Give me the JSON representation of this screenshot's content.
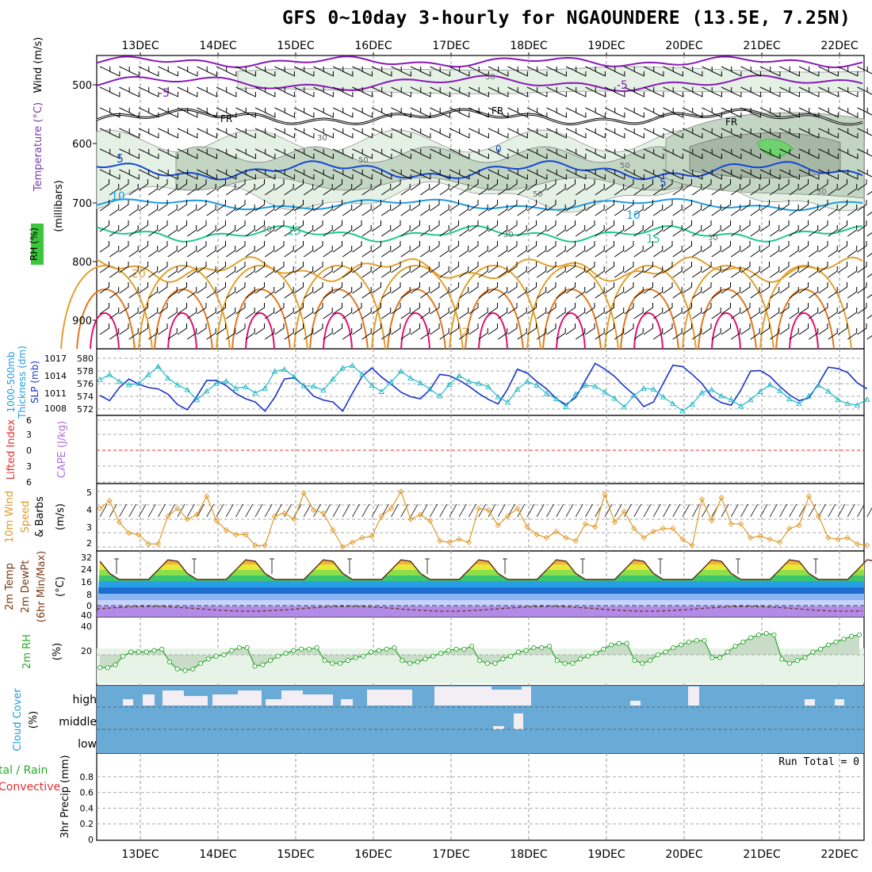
{
  "title": "GFS 0~10day 3-hourly for NGAOUNDERE (13.5E, 7.25N)",
  "date_labels": [
    "13DEC",
    "14DEC",
    "15DEC",
    "16DEC",
    "17DEC",
    "18DEC",
    "19DEC",
    "20DEC",
    "21DEC",
    "22DEC"
  ],
  "colors": {
    "rh_fill_light": "#e4f1e4",
    "rh_fill_mid": "#c3d6c3",
    "rh_fill_dark": "#a6b7a6",
    "rh_fill_sat": "#6fd26f",
    "t_minus5": "#8a18b8",
    "t_freeze": "#000000",
    "t_5": "#1446d2",
    "t_10": "#1e9be0",
    "t_15": "#1ec88c",
    "t_20": "#e0a030",
    "t_25": "#e07820",
    "t_30": "#e01070",
    "thickness": "#1a33cc",
    "slp": "#20b8c8",
    "lifted_index": "#e03030",
    "cape": "#b070e0",
    "wind10m": "#e09a2a",
    "rh2m": "#2aa82a",
    "cloud": "#6aaad6",
    "precip_green": "#2aa82a",
    "precip_red": "#e03030"
  },
  "panels": {
    "upper_air": {
      "ylabel_wind": "Wind (m/s)",
      "ylabel_temp": "Temperature (°C)",
      "ylabel_rh": "RH (%)",
      "ylabel_unit": "(millibars)",
      "y_ticks": [
        "500",
        "600",
        "700",
        "800",
        "900"
      ],
      "contour_labels": {
        "m5": "-5",
        "fr": "FR",
        "p5": "5",
        "p10": "10",
        "p15": "15",
        "p20": "20",
        "p2": "2",
        "rh30": "30",
        "rh50": "50",
        "zero": "0"
      }
    },
    "thickness_slp": {
      "ylabel_left": "1000-500mb",
      "ylabel_left2": "Thickness (dm)",
      "ylabel_right": "SLP (mb)",
      "left_ticks": [
        "580",
        "578",
        "576",
        "574",
        "572"
      ],
      "right_ticks": [
        "1017",
        "1014",
        "1011",
        "1008"
      ]
    },
    "stability": {
      "ylabel_a": "Lifted Index",
      "ylabel_b": "CAPE (J/kg)",
      "ticks": [
        "6",
        "3",
        "0",
        "3",
        "6"
      ]
    },
    "wind10m": {
      "ylabel_a": "10m Wind",
      "ylabel_b": "Speed",
      "ylabel_c": "& Barbs",
      "unit": "(m/s)",
      "ticks": [
        "5",
        "4",
        "3",
        "2"
      ]
    },
    "temp2m": {
      "ylabel_a": "2m Temp",
      "ylabel_b": "2m DewPt",
      "ylabel_c": "(6hr Min/Max)",
      "unit": "(°C)",
      "ticks": [
        "32",
        "24",
        "16",
        "8",
        "0",
        "40"
      ]
    },
    "rh2m": {
      "ylabel": "2m RH",
      "unit": "(%)",
      "ticks": [
        "40",
        "20"
      ]
    },
    "cloud": {
      "ylabel": "Cloud Cover",
      "unit": "(%)",
      "levels": [
        "high",
        "middle",
        "low"
      ]
    },
    "precip": {
      "ylabel_a": "tal / Rain",
      "ylabel_b": "Convective",
      "ylabel_c": "3hr Precip (mm)",
      "run_total": "Run Total = 0",
      "ticks": [
        "0.8",
        "0.6",
        "0.4",
        "0.2",
        "0"
      ]
    }
  },
  "chart_data": [
    {
      "type": "line",
      "name": "1000-500mb thickness & SLP",
      "x_step_hours": 3,
      "series": [
        {
          "name": "Thickness (dm)",
          "values": [
            574.6,
            573.8,
            575.8,
            577.1,
            576.3,
            575.8,
            575.6,
            574.8,
            573.2,
            572.4,
            574.5,
            576.9,
            576.9,
            576.1,
            574.9,
            574.1,
            573.6,
            572.2,
            574.3,
            577.1,
            577.3,
            576.1,
            574.5,
            573.9,
            573.6,
            572.2,
            574.9,
            577.5,
            578.8,
            577.4,
            576.3,
            575.1,
            574.4,
            574.1,
            575.5,
            577.8,
            577.6,
            576.9,
            576.0,
            574.9,
            574.0,
            573.3,
            575.6,
            578.6,
            578.0,
            576.7,
            575.6,
            574.1,
            573.2,
            574.3,
            576.9,
            579.5,
            578.6,
            577.5,
            576.0,
            574.7,
            572.9,
            573.6,
            576.4,
            579.2,
            579.0,
            577.8,
            576.4,
            574.4,
            573.5,
            573.1,
            575.4,
            578.3,
            578.4,
            577.5,
            576.0,
            574.7,
            573.8,
            574.2,
            576.4,
            578.9,
            578.7,
            578.1,
            576.5,
            575.6
          ]
        },
        {
          "name": "SLP (mb)",
          "values": [
            1013.6,
            1014.6,
            1013.2,
            1012.5,
            1012.8,
            1014.6,
            1016.3,
            1013.9,
            1012.5,
            1011.5,
            1009.4,
            1011.2,
            1012.8,
            1013.3,
            1011.8,
            1012.1,
            1010.8,
            1011.8,
            1015.3,
            1015.7,
            1014.2,
            1012.3,
            1012.2,
            1011.4,
            1013.7,
            1016.0,
            1016.5,
            1014.7,
            1012.4,
            1011.1,
            1013.1,
            1015.3,
            1013.9,
            1012.9,
            1011.6,
            1010.2,
            1012.6,
            1014.4,
            1013.2,
            1012.8,
            1012.1,
            1010.0,
            1008.9,
            1011.6,
            1013.2,
            1012.4,
            1010.7,
            1009.6,
            1008.0,
            1010.6,
            1012.4,
            1012.2,
            1011.0,
            1009.7,
            1007.9,
            1010.3,
            1011.8,
            1011.6,
            1010.0,
            1008.6,
            1007.1,
            1008.5,
            1010.9,
            1011.5,
            1010.2,
            1009.4,
            1008.1,
            1009.4,
            1011.1,
            1012.5,
            1011.3,
            1009.6,
            1008.6,
            1010.2,
            1012.4,
            1011.2,
            1009.4,
            1008.6,
            1008.3,
            1009.5
          ]
        }
      ]
    },
    {
      "type": "line",
      "name": "10m Wind Speed (m/s)",
      "ylim": [
        1.5,
        5.5
      ],
      "series": [
        {
          "name": "10m Wind Speed",
          "values": [
            4.1,
            4.6,
            3.2,
            2.5,
            2.4,
            1.8,
            1.8,
            3.6,
            4.1,
            3.4,
            3.7,
            4.9,
            3.3,
            2.7,
            2.4,
            2.4,
            1.7,
            1.7,
            3.6,
            3.8,
            3.4,
            5.1,
            4.0,
            3.8,
            2.7,
            1.6,
            1.9,
            2.2,
            2.3,
            3.6,
            4.1,
            5.2,
            3.4,
            3.7,
            3.3,
            2.0,
            1.9,
            2.1,
            1.9,
            4.1,
            4.0,
            3.0,
            3.6,
            4.1,
            2.9,
            2.4,
            2.2,
            2.6,
            2.2,
            2.0,
            3.1,
            2.9,
            5.0,
            3.2,
            3.9,
            2.8,
            2.2,
            2.6,
            2.8,
            2.8,
            2.1,
            1.7,
            4.7,
            3.3,
            4.8,
            3.1,
            3.1,
            2.2,
            2.3,
            2.1,
            1.9,
            2.8,
            3.0,
            4.9,
            3.6,
            2.2,
            2.1,
            2.2,
            1.8,
            1.7
          ]
        }
      ]
    },
    {
      "type": "area",
      "name": "2m RH (%)",
      "series": [
        {
          "name": "2m RH",
          "values": [
            11,
            11,
            13,
            19,
            22,
            22,
            22,
            23,
            24,
            15,
            10,
            9,
            10,
            14,
            17,
            19,
            20,
            23,
            25,
            25,
            12,
            13,
            16,
            19,
            21,
            23,
            24,
            24,
            25,
            16,
            14,
            14,
            16,
            18,
            19,
            22,
            23,
            24,
            25,
            16,
            14,
            15,
            17,
            19,
            21,
            23,
            24,
            24,
            26,
            16,
            14,
            14,
            17,
            19,
            22,
            23,
            25,
            25,
            26,
            16,
            14,
            14,
            17,
            19,
            21,
            24,
            27,
            28,
            28,
            16,
            14,
            16,
            20,
            22,
            25,
            27,
            29,
            30,
            30,
            18,
            18,
            22,
            26,
            29,
            32,
            34,
            35,
            34,
            17,
            14,
            16,
            18,
            22,
            24,
            27,
            29,
            31,
            33,
            34
          ]
        }
      ]
    },
    {
      "type": "bar",
      "name": "3hr Precip (mm)",
      "ylim": [
        0,
        1
      ],
      "series": [
        {
          "name": "Total / Rain",
          "values": []
        },
        {
          "name": "Convective",
          "values": []
        }
      ]
    }
  ]
}
